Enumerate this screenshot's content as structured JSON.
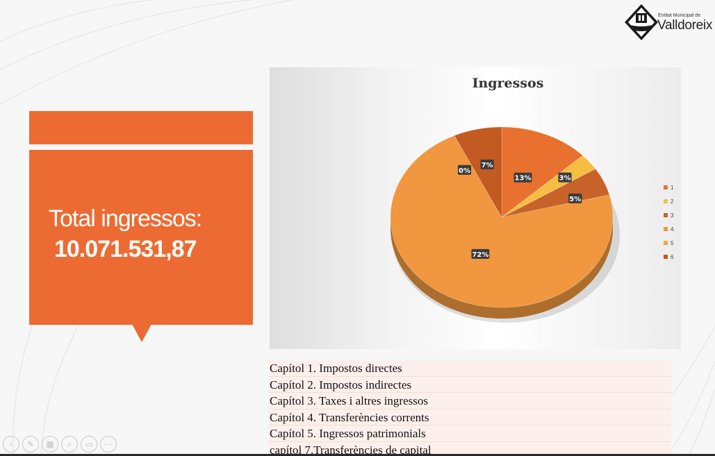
{
  "logo": {
    "subtitle": "Entitat Municipal de",
    "name": "Valldoreix"
  },
  "summary": {
    "label": "Total ingressos:",
    "value": "10.071.531,87"
  },
  "chart_data": {
    "type": "pie",
    "title": "Ingressos",
    "categories": [
      "1",
      "2",
      "3",
      "4",
      "5",
      "6"
    ],
    "values": [
      13,
      3,
      5,
      72,
      0,
      7
    ],
    "labels": [
      "13%",
      "3%",
      "5%",
      "72%",
      "0%",
      "7%"
    ],
    "colors": [
      "#e8712f",
      "#f6bd43",
      "#c6622a",
      "#f0973f",
      "#f1aa3d",
      "#c35a22"
    ],
    "legend": "right"
  },
  "captions": [
    "Capítol 1. Impostos directes",
    "Capítol 2. Impostos indirectes",
    "Capítol 3. Taxes i altres ingressos",
    "Capítol 4. Transferències corrents",
    "Capítol 5. Ingressos patrimonials",
    "capítol 7.Transferències de capital"
  ],
  "toolbar": {
    "icons": [
      "previous-icon",
      "pen-icon",
      "slides-icon",
      "zoom-icon",
      "subtitles-icon",
      "more-icon"
    ]
  }
}
